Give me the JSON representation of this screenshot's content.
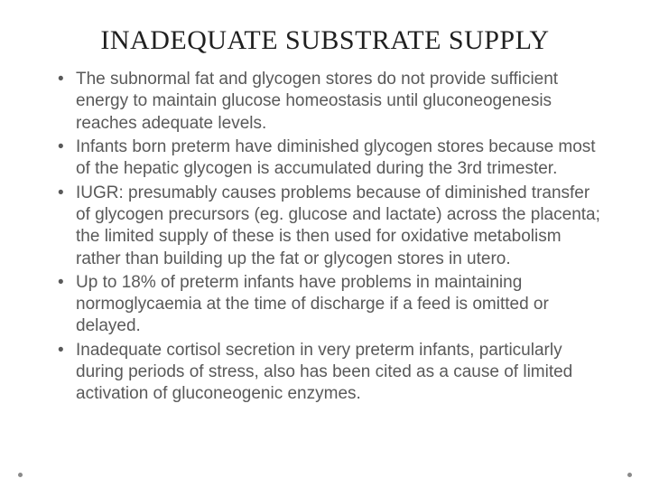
{
  "title": {
    "text": "INADEQUATE SUBSTRATE SUPPLY",
    "fontsize": 30,
    "color": "#1f1f1f"
  },
  "bullets": {
    "fontsize": 19,
    "color": "#595959",
    "items": [
      "The subnormal fat and glycogen stores do not provide sufficient energy to maintain glucose homeostasis until gluconeogenesis reaches adequate levels.",
      "Infants born preterm have diminished glycogen stores because most of the hepatic glycogen is accumulated during the 3rd trimester.",
      "IUGR: presumably causes problems because of diminished transfer of glycogen precursors (eg. glucose and lactate) across the placenta; the limited supply of these is then used for oxidative metabolism rather than building up the fat or glycogen stores in utero.",
      "Up to 18% of  preterm infants have problems in maintaining normoglycaemia at the time of discharge if a feed is omitted or delayed.",
      "Inadequate cortisol secretion in very preterm infants, particularly during periods of stress, also has been cited as a cause of limited activation of gluconeogenic enzymes."
    ]
  },
  "background_color": "#ffffff",
  "dot_color": "#8a8a8a"
}
